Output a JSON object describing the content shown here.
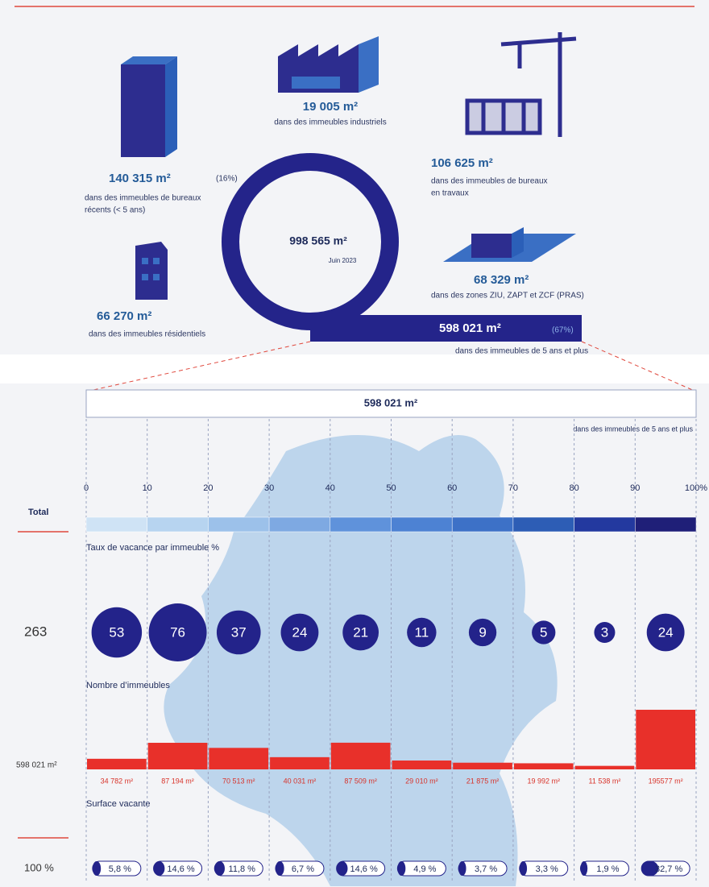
{
  "overview": {
    "total": {
      "value": "998 565 m²",
      "date": "Juin 2023"
    },
    "recent_offices": {
      "value": "140 315 m²",
      "share": "(16%)",
      "label": [
        "dans des immeubles de bureaux",
        "récents (< 5 ans)"
      ]
    },
    "industrial": {
      "value": "19 005 m²",
      "label": [
        "dans des immeubles industriels"
      ]
    },
    "offices_works": {
      "value": "106 625 m²",
      "label": [
        "dans des immeubles de bureaux",
        "en travaux"
      ]
    },
    "residential": {
      "value": "66 270 m²",
      "label": [
        "dans des immeubles résidentiels"
      ]
    },
    "zones": {
      "value": "68 329 m²",
      "label": [
        "dans des zones  ZIU, ZAPT et ZCF (PRAS)"
      ]
    },
    "older": {
      "value": "598 021 m²",
      "share": "(67%)",
      "label": [
        "dans des immeubles de 5 ans et plus"
      ]
    }
  },
  "detail": {
    "header": {
      "value": "598 021 m²",
      "label": "dans des immeubles de 5 ans et plus"
    },
    "scale": {
      "row_label": "Total",
      "caption": "Taux de vacance par immeuble %",
      "ticks": [
        0,
        10,
        20,
        30,
        40,
        50,
        60,
        70,
        80,
        90,
        {
          "value": 100,
          "label": "100%"
        }
      ],
      "colors": [
        "#cfe3f5",
        "#b7d4f0",
        "#9cc1ea",
        "#7ea9e2",
        "#5f92db",
        "#4d82d3",
        "#3d71c7",
        "#2d5db5",
        "#23399f",
        "#1f1f78"
      ]
    },
    "buildings": {
      "total": 263,
      "caption": "Nombre d’immeubles",
      "counts": [
        53,
        76,
        37,
        24,
        21,
        11,
        9,
        5,
        3,
        24
      ],
      "color": "#23238a"
    },
    "surface": {
      "total": "598 021 m²",
      "caption": "Surface vacante",
      "values": [
        34782,
        87194,
        70513,
        40031,
        87509,
        29010,
        21875,
        19992,
        11538,
        195577
      ],
      "value_labels": [
        "34 782 m²",
        "87 194 m²",
        "70 513 m²",
        "40 031 m²",
        "87 509 m²",
        "29 010 m²",
        "21 875 m²",
        "19 992 m²",
        "11 538 m²",
        "195577 m²"
      ],
      "color": "#e8302a"
    },
    "shares": {
      "total": "100 %",
      "values": [
        5.8,
        14.6,
        11.8,
        6.7,
        14.6,
        4.9,
        3.7,
        3.3,
        1.9,
        32.7
      ],
      "value_labels": [
        "5,8 %",
        "14,6 %",
        "11,8 %",
        "6,7 %",
        "14,6 %",
        "4,9 %",
        "3,7 %",
        "3,3 %",
        "1,9 %",
        "32,7 %"
      ]
    }
  }
}
